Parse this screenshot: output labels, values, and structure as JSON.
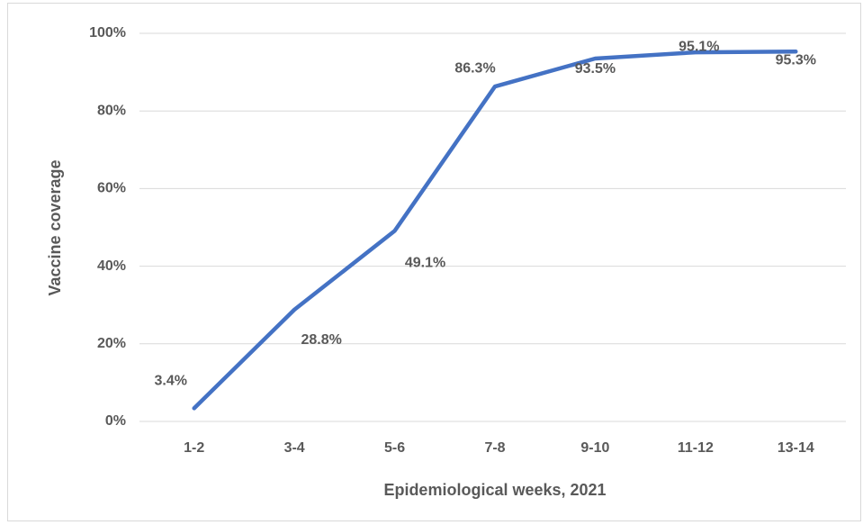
{
  "chart_data": {
    "type": "line",
    "x_label": "Epidemiological weeks, 2021",
    "y_label": "Vaccine coverage",
    "categories": [
      "1-2",
      "3-4",
      "5-6",
      "7-8",
      "9-10",
      "11-12",
      "13-14"
    ],
    "values": [
      3.4,
      28.8,
      49.1,
      86.3,
      93.5,
      95.1,
      95.3
    ],
    "value_labels": [
      "3.4%",
      "28.8%",
      "49.1%",
      "86.3%",
      "93.5%",
      "95.1%",
      "95.3%"
    ],
    "color": "#4472c4",
    "ylim": [
      0,
      100
    ],
    "yticks": [
      {
        "value": 0,
        "label": "0%"
      },
      {
        "value": 20,
        "label": "20%"
      },
      {
        "value": 40,
        "label": "40%"
      },
      {
        "value": 60,
        "label": "60%"
      },
      {
        "value": 80,
        "label": "80%"
      },
      {
        "value": 100,
        "label": "100%"
      }
    ],
    "grid": true
  }
}
